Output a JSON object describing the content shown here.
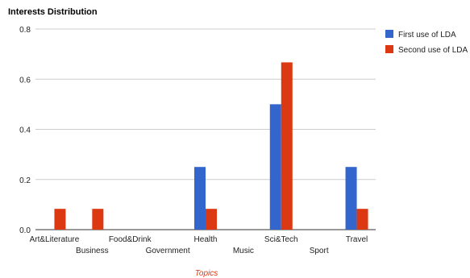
{
  "chart_data": {
    "type": "bar",
    "title": "Interests Distribution",
    "xlabel": "Topics",
    "ylabel": "",
    "ylim": [
      0,
      0.8
    ],
    "yticks": [
      "0.0",
      "0.2",
      "0.4",
      "0.6",
      "0.8"
    ],
    "categories": [
      "Art&Literature",
      "Business",
      "Food&Drink",
      "Government",
      "Health",
      "Music",
      "Sci&Tech",
      "Sport",
      "Travel"
    ],
    "series": [
      {
        "name": "First use of LDA",
        "color": "#3366cc",
        "values": [
          0,
          0,
          0,
          0,
          0.25,
          0,
          0.5,
          0,
          0.25
        ]
      },
      {
        "name": "Second use of LDA",
        "color": "#dc3912",
        "values": [
          0.083,
          0.083,
          0,
          0,
          0.083,
          0,
          0.667,
          0,
          0.083
        ]
      }
    ],
    "grid": true,
    "legend_position": "right"
  }
}
